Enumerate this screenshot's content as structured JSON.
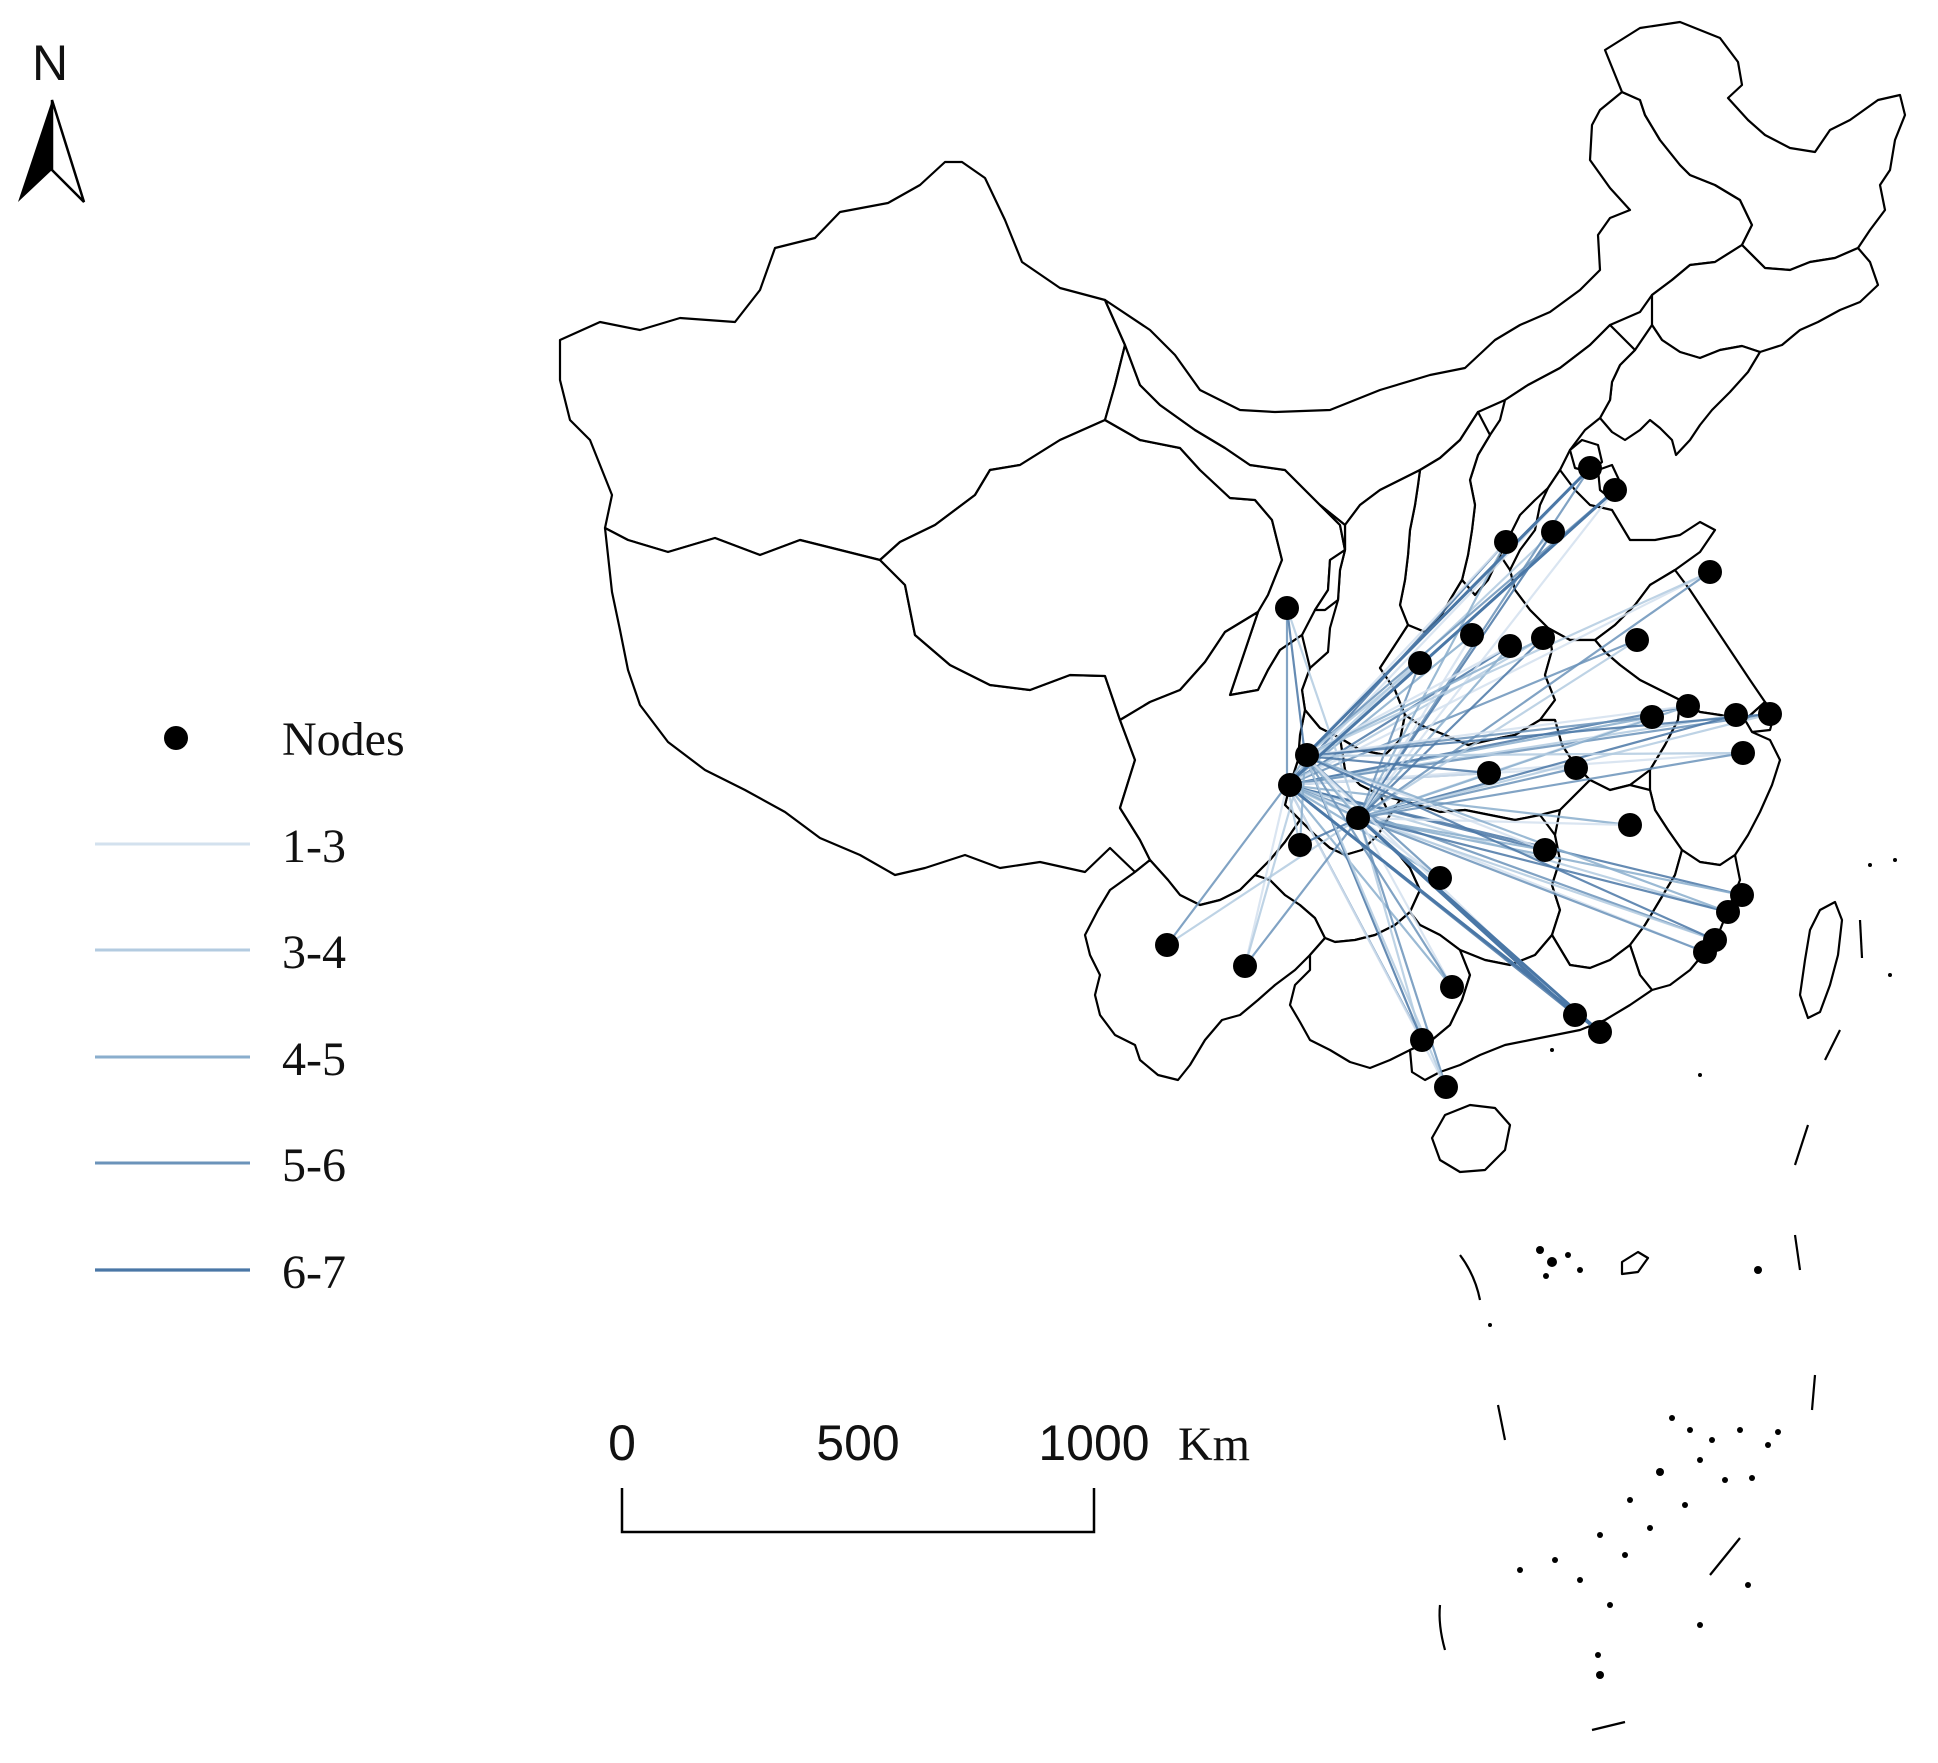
{
  "north_arrow": {
    "label": "N"
  },
  "legend": {
    "nodes_label": "Nodes",
    "classes": [
      {
        "label": "1-3",
        "color": "#d3e1ee",
        "width": 3
      },
      {
        "label": "3-4",
        "color": "#b3cbe0",
        "width": 3
      },
      {
        "label": "4-5",
        "color": "#8aaecd",
        "width": 3
      },
      {
        "label": "5-6",
        "color": "#6b93ba",
        "width": 3
      },
      {
        "label": "6-7",
        "color": "#4a77a6",
        "width": 3.2
      }
    ]
  },
  "scale_bar": {
    "ticks": [
      "0",
      "500",
      "1000"
    ],
    "unit": "Km"
  },
  "colors": {
    "boundary": "#000000",
    "node": "#000000",
    "background": "#ffffff"
  }
}
